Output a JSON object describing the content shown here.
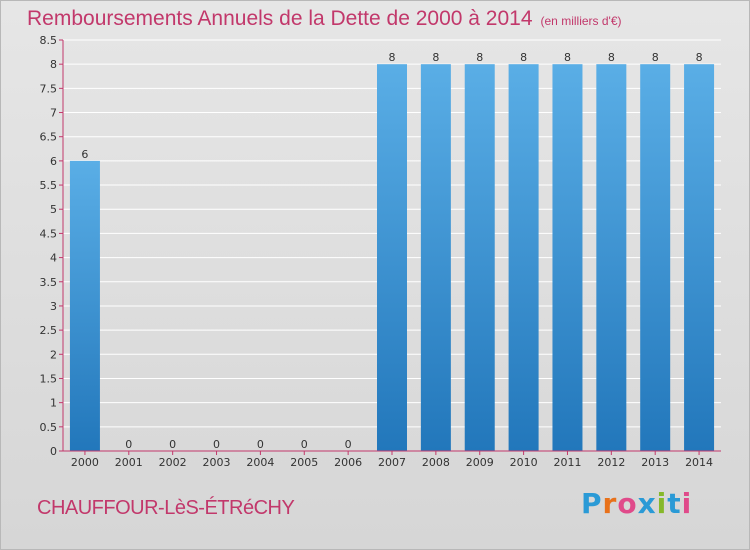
{
  "title": "Remboursements Annuels de la Dette de 2000 à 2014",
  "title_unit": "(en milliers d'€)",
  "commune": "CHAUFFOUR-LèS-ÉTRéCHY",
  "logo": {
    "letters": [
      "P",
      "r",
      "o",
      "x",
      "i",
      "t",
      "i"
    ],
    "colors": [
      "#2a9ad6",
      "#e8711a",
      "#e04a8a",
      "#2a9ad6",
      "#86b82a",
      "#2a9ad6",
      "#e04a8a"
    ]
  },
  "colors": {
    "bar_top": "#5aaee6",
    "bar_bottom": "#2277bb",
    "axis": "#c2386b",
    "grid": "#ffffff",
    "accent": "#c2386b"
  },
  "chart_data": {
    "type": "bar",
    "categories": [
      "2000",
      "2001",
      "2002",
      "2003",
      "2004",
      "2005",
      "2006",
      "2007",
      "2008",
      "2009",
      "2010",
      "2011",
      "2012",
      "2013",
      "2014"
    ],
    "values": [
      6,
      0,
      0,
      0,
      0,
      0,
      0,
      8,
      8,
      8,
      8,
      8,
      8,
      8,
      8
    ],
    "value_labels": [
      "6",
      "0",
      "0",
      "0",
      "0",
      "0",
      "0",
      "8",
      "8",
      "8",
      "8",
      "8",
      "8",
      "8",
      "8"
    ],
    "yticks": [
      "0",
      "0.5",
      "1",
      "1.5",
      "2",
      "2.5",
      "3",
      "3.5",
      "4",
      "4.5",
      "5",
      "5.5",
      "6",
      "6.5",
      "7",
      "7.5",
      "8",
      "8.5"
    ],
    "ylim": [
      0,
      8.5
    ],
    "title": "Remboursements Annuels de la Dette de 2000 à 2014",
    "xlabel": "",
    "ylabel": "",
    "grid": true
  }
}
